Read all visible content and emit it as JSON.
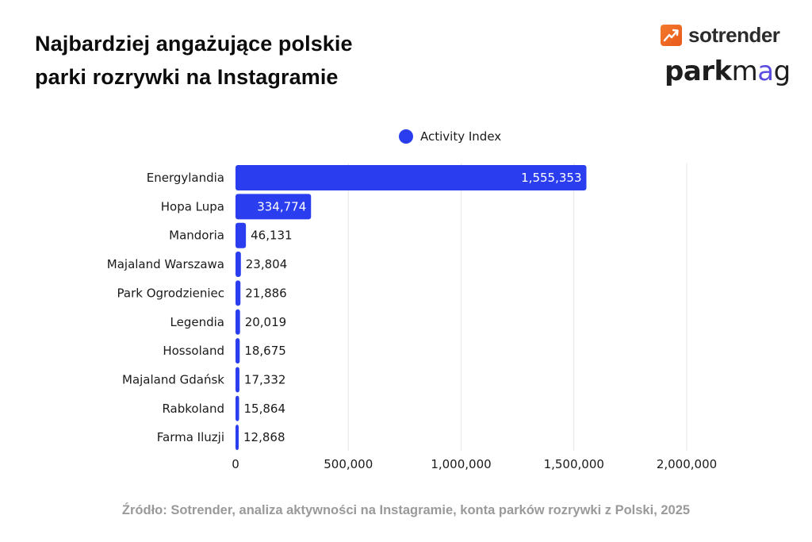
{
  "header": {
    "title_line1": "Najbardziej angażujące polskie",
    "title_line2": "parki rozrywki na Instagramie"
  },
  "logos": {
    "sotrender": {
      "text": "sotrender",
      "icon": "trending-up-icon",
      "color": "#f26b21"
    },
    "parkmag": {
      "text_bold": "park",
      "text_light": "m",
      "text_accent": "a",
      "text_end": "g",
      "accent_color": "#5a4ee0"
    }
  },
  "legend": {
    "label": "Activity Index",
    "color": "#2a3ef0"
  },
  "source": "Źródło: Sotrender, analiza aktywności na Instagramie, konta parków rozrywki z Polski, 2025",
  "chart_data": {
    "type": "bar",
    "orientation": "horizontal",
    "title": "Najbardziej angażujące polskie parki rozrywki na Instagramie",
    "xlabel": "",
    "ylabel": "",
    "xlim": [
      0,
      2000000
    ],
    "xticks": [
      0,
      500000,
      1000000,
      1500000,
      2000000
    ],
    "xtick_labels": [
      "0",
      "500,000",
      "1,000,000",
      "1,500,000",
      "2,000,000"
    ],
    "grid": true,
    "legend_position": "top-center",
    "categories": [
      "Energylandia",
      "Hopa Lupa",
      "Mandoria",
      "Majaland Warszawa",
      "Park Ogrodzieniec",
      "Legendia",
      "Hossoland",
      "Majaland Gdańsk",
      "Rabkoland",
      "Farma Iluzji"
    ],
    "series": [
      {
        "name": "Activity Index",
        "color": "#2a3ef0",
        "values": [
          1555353,
          334774,
          46131,
          23804,
          21886,
          20019,
          18675,
          17332,
          15864,
          12868
        ],
        "labels": [
          "1,555,353",
          "334,774",
          "46,131",
          "23,804",
          "21,886",
          "20,019",
          "18,675",
          "17,332",
          "15,864",
          "12,868"
        ]
      }
    ]
  }
}
